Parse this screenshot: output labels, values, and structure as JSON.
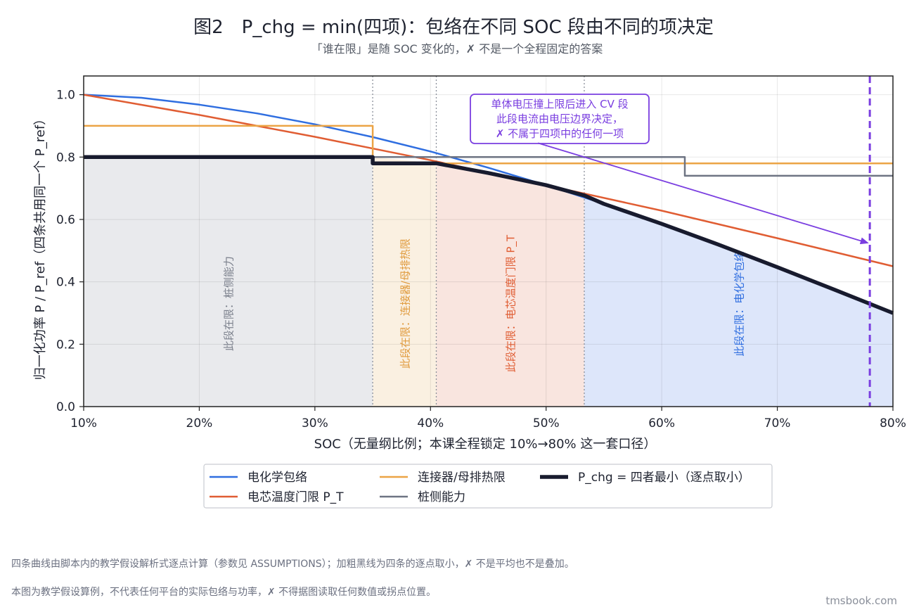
{
  "chart_data": {
    "type": "line",
    "title": "图2　P_chg = min(四项)：包络在不同 SOC 段由不同的项决定",
    "subtitle": "「谁在限」是随 SOC 变化的，✗ 不是一个全程固定的答案",
    "xlabel": "SOC（无量纲比例；本课全程锁定 10%→80% 这一套口径）",
    "ylabel": "归一化功率 P / P_ref（四条共用同一个 P_ref）",
    "xlim": [
      10,
      80
    ],
    "ylim": [
      0,
      1.06
    ],
    "x_ticks": [
      10,
      20,
      30,
      40,
      50,
      60,
      70,
      80
    ],
    "x_tick_labels": [
      "10%",
      "20%",
      "30%",
      "40%",
      "50%",
      "60%",
      "70%",
      "80%"
    ],
    "y_ticks": [
      0.0,
      0.2,
      0.4,
      0.6,
      0.8,
      1.0
    ],
    "y_tick_labels": [
      "0.0",
      "0.2",
      "0.4",
      "0.6",
      "0.8",
      "1.0"
    ],
    "grid": true,
    "legend_position": "bottom-center",
    "series": [
      {
        "name": "电化学包络",
        "color": "#2f6ee0",
        "width": 2.5,
        "x": [
          10,
          15,
          20,
          25,
          30,
          35,
          40,
          45,
          50,
          55,
          60,
          65,
          70,
          75,
          80
        ],
        "y": [
          1.0,
          0.99,
          0.968,
          0.94,
          0.905,
          0.864,
          0.818,
          0.766,
          0.71,
          0.65,
          0.586,
          0.518,
          0.447,
          0.374,
          0.3
        ]
      },
      {
        "name": "电芯温度门限 P_T",
        "color": "#e05d33",
        "width": 2.5,
        "x": [
          10,
          20,
          30,
          40,
          50,
          60,
          70,
          80
        ],
        "y": [
          1.0,
          0.935,
          0.865,
          0.79,
          0.71,
          0.628,
          0.54,
          0.45
        ]
      },
      {
        "name": "连接器/母排热限",
        "color": "#eba445",
        "width": 2.5,
        "x": [
          10,
          35,
          35,
          80
        ],
        "y": [
          0.9,
          0.9,
          0.78,
          0.78
        ]
      },
      {
        "name": "桩侧能力",
        "color": "#6e7483",
        "width": 2.5,
        "x": [
          10,
          62,
          62,
          80
        ],
        "y": [
          0.8,
          0.8,
          0.74,
          0.74
        ]
      },
      {
        "name": "P_chg = 四者最小（逐点取小）",
        "color": "#181b2e",
        "width": 5.5,
        "x": [
          10,
          35,
          35,
          40.5,
          45,
          50,
          53.3,
          55,
          60,
          65,
          70,
          75,
          80
        ],
        "y": [
          0.8,
          0.8,
          0.78,
          0.78,
          0.749,
          0.71,
          0.677,
          0.65,
          0.586,
          0.518,
          0.447,
          0.374,
          0.3
        ]
      }
    ],
    "regions": [
      {
        "x0": 10,
        "x1": 35,
        "label": "此段在限：桩侧能力",
        "fill": "#e9eaed",
        "color": "#7b808c",
        "label_y": 0.33
      },
      {
        "x0": 35,
        "x1": 40.5,
        "label": "此段在限：连接器/母排热限",
        "fill": "#faf0e1",
        "color": "#e09a3c",
        "label_y": 0.33
      },
      {
        "x0": 40.5,
        "x1": 53.3,
        "label": "此段在限：电芯温度门限 P_T",
        "fill": "#f9e5df",
        "color": "#e05d33",
        "label_y": 0.33
      },
      {
        "x0": 53.3,
        "x1": 80,
        "label": "此段在限：电化学包络",
        "fill": "#dde6fa",
        "color": "#2f6ee0",
        "label_y": 0.33
      }
    ],
    "boundaries": [
      35,
      40.5,
      53.3
    ],
    "cv_line": {
      "x": 78,
      "color": "#7a3ee0"
    },
    "annotation": {
      "lines": [
        "单体电压撞上限后进入 CV 段",
        "此段电流由电压边界决定，",
        "✗ 不属于四项中的任何一项"
      ],
      "anchor_x": 44,
      "anchor_y": 0.92,
      "arrow_from_x": 49.3,
      "arrow_from_y": 0.845,
      "arrow_to_x": 77.8,
      "arrow_to_y": 0.525
    }
  },
  "footer": {
    "note1": "四条曲线由脚本内的教学假设解析式逐点计算（参数见 ASSUMPTIONS）；加粗黑线为四条的逐点取小，✗ 不是平均也不是叠加。",
    "note2": "本图为教学假设算例，不代表任何平台的实际包络与功率，✗ 不得据图读取任何数值或拐点位置。",
    "brand": "tmsbook.com"
  }
}
